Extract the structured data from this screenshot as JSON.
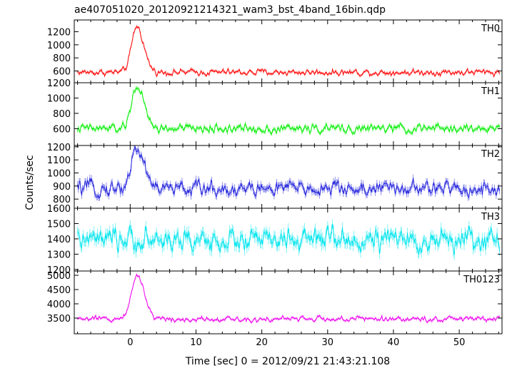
{
  "chart_data": {
    "type": "line",
    "title": "ae407051020_20120921214321_wam3_bst_4band_16bin.qdp",
    "xlabel": "Time [sec] 0 = 2012/09/21 21:43:21.108",
    "ylabel": "Counts/sec",
    "xlim": [
      -8.5,
      56.5
    ],
    "x_ticks": [
      0,
      10,
      20,
      30,
      40,
      50
    ],
    "x_tick_labels": [
      "0",
      "10",
      "20",
      "30",
      "40",
      "50"
    ],
    "time_step": 0.125,
    "panels": [
      {
        "name": "TH0",
        "color": "#ff0000",
        "ylim": [
          420,
          1380
        ],
        "y_ticks": [
          600,
          800,
          1000,
          1200
        ],
        "y_tick_labels": [
          "600",
          "800",
          "1000",
          "1200"
        ],
        "baseline": 580,
        "noise": 45,
        "peak_time": 1.0,
        "peak_amp": 700,
        "peak_width": 0.7
      },
      {
        "name": "TH1",
        "color": "#00ee00",
        "ylim": [
          380,
          1200
        ],
        "y_ticks": [
          600,
          800,
          1000,
          1200
        ],
        "y_tick_labels": [
          "600",
          "800",
          "1000",
          "1200"
        ],
        "baseline": 600,
        "noise": 55,
        "peak_time": 1.0,
        "peak_amp": 560,
        "peak_width": 0.7
      },
      {
        "name": "TH2",
        "color": "#2222dd",
        "ylim": [
          730,
          1210
        ],
        "y_ticks": [
          800,
          900,
          1000,
          1100,
          1200
        ],
        "y_tick_labels": [
          "800",
          "900",
          "1000",
          "1100",
          "1200"
        ],
        "baseline": 880,
        "noise": 55,
        "peak_time": 1.0,
        "peak_amp": 300,
        "peak_width": 0.8
      },
      {
        "name": "TH3",
        "color": "#00e5ee",
        "ylim": [
          1190,
          1600
        ],
        "y_ticks": [
          1200,
          1300,
          1400,
          1500,
          1600
        ],
        "y_tick_labels": [
          "1200",
          "1300",
          "1400",
          "1500",
          "1600"
        ],
        "baseline": 1390,
        "noise": 70,
        "peak_time": 1.0,
        "peak_amp": 0,
        "peak_width": 0.8
      },
      {
        "name": "TH0123",
        "color": "#ee00ee",
        "ylim": [
          2950,
          5150
        ],
        "y_ticks": [
          3500,
          4000,
          4500,
          5000
        ],
        "y_tick_labels": [
          "3500",
          "4000",
          "4500",
          "5000"
        ],
        "baseline": 3470,
        "noise": 90,
        "peak_time": 1.0,
        "peak_amp": 1550,
        "peak_width": 0.75
      }
    ]
  }
}
